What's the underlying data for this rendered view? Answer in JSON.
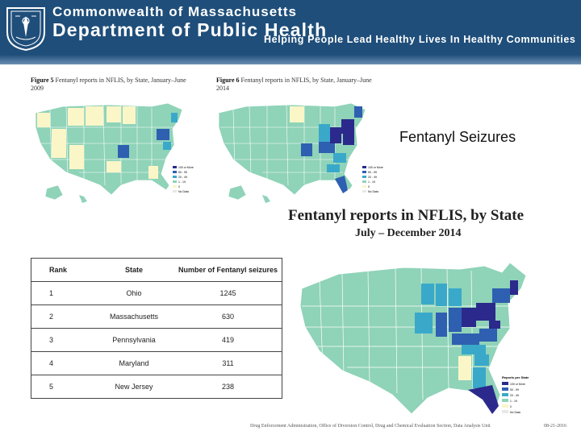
{
  "header": {
    "org_line1": "Commonwealth of Massachusetts",
    "org_line2": "Department of Public Health",
    "tagline": "Helping People Lead Healthy Lives In Healthy Communities"
  },
  "figure5": {
    "label": "Figure 5",
    "caption": "Fentanyl reports in NFLIS, by State, January–June 2009"
  },
  "figure6": {
    "label": "Figure 6",
    "caption": "Fentanyl reports in NFLIS, by State, January–June 2014"
  },
  "slide_title": "Fentanyl Seizures",
  "map_title": "Fentanyl reports in NFLIS, by State",
  "map_subtitle": "July – December 2014",
  "legend": {
    "title": "Reports per State",
    "items": [
      "100 or More",
      "50 - 99",
      "20 - 49",
      "1 - 19",
      "0",
      "No Data"
    ],
    "colors": [
      "#2b2a8c",
      "#2f5fb0",
      "#3aa9c9",
      "#8fd3b8",
      "#fbf6c8",
      "#e8e8e8"
    ]
  },
  "colors": {
    "header_bg": "#1f4e7a",
    "map_base": "#8fd3b8"
  },
  "table": {
    "headers": [
      "Rank",
      "State",
      "Number of Fentanyl seizures"
    ],
    "rows": [
      {
        "rank": "1",
        "state": "Ohio",
        "count": "1245"
      },
      {
        "rank": "2",
        "state": "Massachusetts",
        "count": "630"
      },
      {
        "rank": "3",
        "state": "Pennsylvania",
        "count": "419"
      },
      {
        "rank": "4",
        "state": "Maryland",
        "count": "311"
      },
      {
        "rank": "5",
        "state": "New Jersey",
        "count": "238"
      }
    ]
  },
  "footer": {
    "source": "Drug Enforcement Administration, Office of Diversion Control, Drug and Chemical Evaluation Section, Data Analysis Unit",
    "date": "08-21-2016"
  }
}
